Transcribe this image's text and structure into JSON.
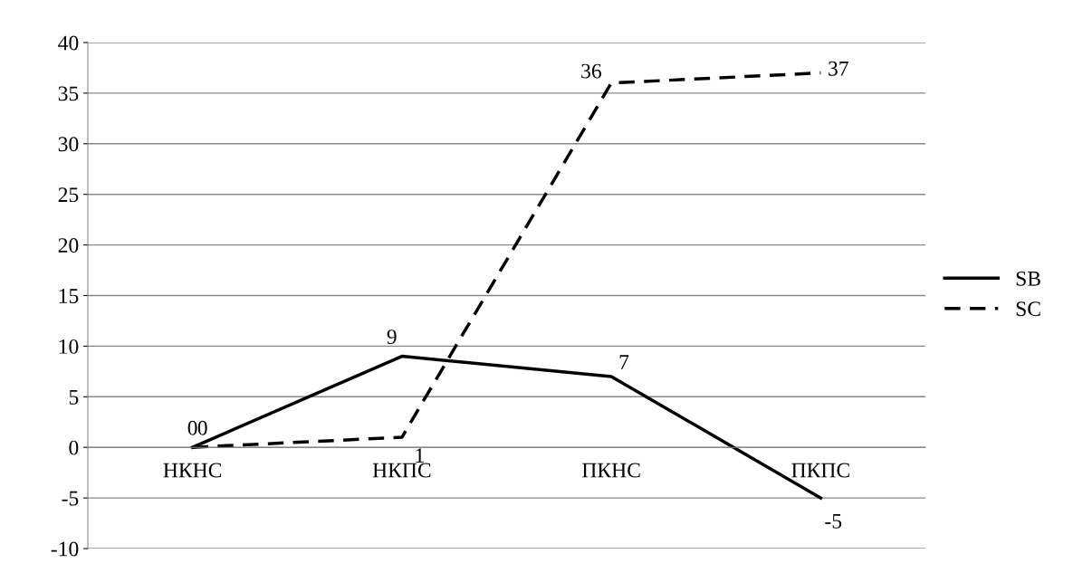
{
  "chart_data": {
    "type": "line",
    "categories": [
      "НКНС",
      "НКПС",
      "ПКНС",
      "ПКПС"
    ],
    "series": [
      {
        "name": "SB",
        "color": "#000000",
        "line_style": "solid",
        "values": [
          0,
          9,
          7,
          -5
        ]
      },
      {
        "name": "SC",
        "color": "#000000",
        "line_style": "dashed",
        "values": [
          0,
          1,
          36,
          37
        ]
      }
    ],
    "data_labels": true,
    "ylim": [
      -10,
      40
    ],
    "yticks": [
      -10,
      -5,
      0,
      5,
      10,
      15,
      20,
      25,
      30,
      35,
      40
    ],
    "grid": "y",
    "legend": "right",
    "marker": "none"
  }
}
